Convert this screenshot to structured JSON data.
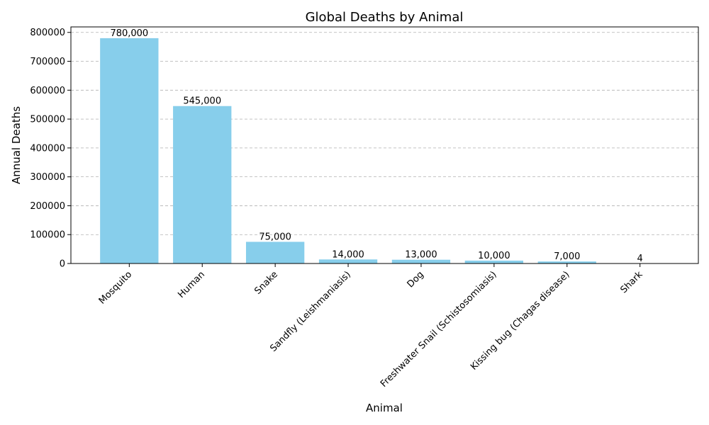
{
  "chart_data": {
    "type": "bar",
    "title": "Global Deaths by Animal",
    "xlabel": "Animal",
    "ylabel": "Annual Deaths",
    "categories": [
      "Mosquito",
      "Human",
      "Snake",
      "Sandfly (Leishmaniasis)",
      "Dog",
      "Freshwater Snail (Schistosomiasis)",
      "Kissing bug (Chagas disease)",
      "Shark"
    ],
    "values": [
      780000,
      545000,
      75000,
      14000,
      13000,
      10000,
      7000,
      4
    ],
    "value_labels": [
      "780,000",
      "545,000",
      "75,000",
      "14,000",
      "13,000",
      "10,000",
      "7,000",
      "4"
    ],
    "ylim": [
      0,
      819000
    ],
    "yticks": [
      0,
      100000,
      200000,
      300000,
      400000,
      500000,
      600000,
      700000,
      800000
    ],
    "ytick_labels": [
      "0",
      "100000",
      "200000",
      "300000",
      "400000",
      "500000",
      "600000",
      "700000",
      "800000"
    ],
    "grid": "y-dashed",
    "bar_color": "#87ceeb"
  }
}
